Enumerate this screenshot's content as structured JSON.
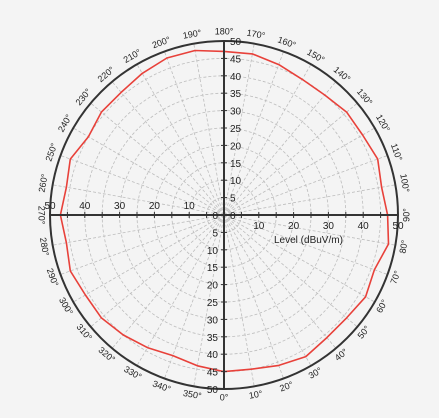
{
  "chart_data": {
    "type": "polar-line",
    "radial_axis": {
      "label": "Level (dBuV/m)",
      "range": [
        0,
        50
      ],
      "ticks": [
        0,
        5,
        10,
        15,
        20,
        25,
        30,
        35,
        40,
        45,
        50
      ],
      "horizontal_ticks": [
        10,
        20,
        30,
        40,
        50
      ]
    },
    "angular_axis": {
      "zero_direction": "bottom",
      "increasing": "counterclockwise",
      "tick_step_deg": 10,
      "tick_labels": [
        "0°",
        "10°",
        "20°",
        "30°",
        "40°",
        "50°",
        "60°",
        "70°",
        "80°",
        "90°",
        "100°",
        "110°",
        "120°",
        "130°",
        "140°",
        "150°",
        "160°",
        "170°",
        "180°",
        "190°",
        "200°",
        "210°",
        "220°",
        "230°",
        "240°",
        "250°",
        "260°",
        "270°",
        "280°",
        "290°",
        "300°",
        "310°",
        "320°",
        "330°",
        "340°",
        "350°"
      ]
    },
    "grid": true,
    "series": [
      {
        "color": "#e8413a",
        "angles": [
          0,
          10,
          20,
          30,
          40,
          50,
          60,
          70,
          80,
          90,
          100,
          110,
          120,
          130,
          140,
          150,
          160,
          170,
          180,
          190,
          200,
          210,
          220,
          230,
          240,
          250,
          260,
          270,
          280,
          290,
          300,
          310,
          320,
          330,
          340,
          350
        ],
        "values": [
          45,
          45,
          46,
          47,
          46,
          46,
          47,
          46,
          48,
          47,
          46,
          47,
          46,
          46,
          45,
          45,
          46,
          47,
          47,
          48,
          48,
          47,
          46,
          46,
          45,
          47,
          46,
          47,
          46,
          47,
          46,
          46,
          45,
          44,
          43,
          44
        ]
      }
    ]
  },
  "colors": {
    "background": "#f4f4f4",
    "axis": "#333333",
    "grid": "#bdbdbd",
    "series": "#e8413a"
  }
}
